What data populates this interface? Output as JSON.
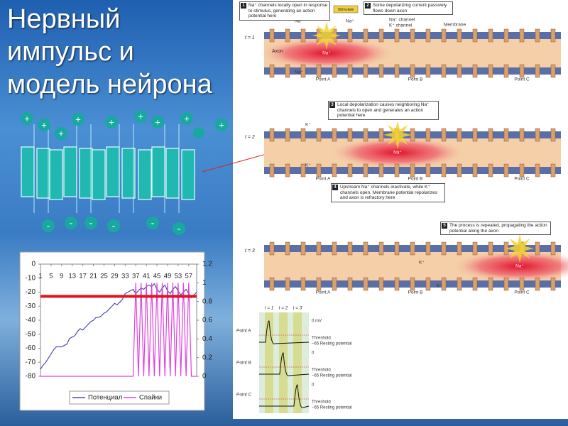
{
  "title_lines": [
    "Нервный",
    "импульс и",
    "модель нейрона"
  ],
  "ion_diagram": {
    "plus": "+",
    "minus": "-"
  },
  "chart_data": {
    "type": "line",
    "x": [
      1,
      2,
      3,
      4,
      5,
      6,
      7,
      8,
      9,
      10,
      11,
      12,
      13,
      14,
      15,
      16,
      17,
      18,
      19,
      20,
      21,
      22,
      23,
      24,
      25,
      26,
      27,
      28,
      29,
      30,
      31,
      32,
      33,
      34,
      35,
      36,
      37,
      38,
      39,
      40,
      41,
      42,
      43,
      44,
      45,
      46,
      47,
      48,
      49,
      50,
      51,
      52,
      53,
      54,
      55,
      56,
      57,
      58,
      59,
      60
    ],
    "xlim": [
      1,
      60
    ],
    "xticks": [
      1,
      5,
      9,
      13,
      17,
      21,
      25,
      29,
      33,
      37,
      41,
      45,
      49,
      53,
      57
    ],
    "ylim": [
      -80,
      0
    ],
    "yticks": [
      0,
      -10,
      -20,
      -30,
      -40,
      -50,
      -60,
      -70,
      -80
    ],
    "y2lim": [
      0,
      1.2
    ],
    "y2ticks": [
      {
        "value": 1.2,
        "label": "1.2"
      },
      1,
      0.8,
      0.6,
      0.4,
      0.2,
      0
    ],
    "reference_line": {
      "value": -23,
      "color": "#e0141c"
    },
    "series": [
      {
        "name": "Потенциал",
        "color": "#4a4fa8",
        "values": [
          -75,
          -72,
          -70,
          -67,
          -64,
          -61,
          -59,
          -59,
          -59,
          -58,
          -57,
          -53,
          -52,
          -51,
          -48,
          -46,
          -47,
          -45,
          -43,
          -41,
          -40,
          -38,
          -38,
          -37,
          -35,
          -34,
          -32,
          -30,
          -28,
          -29,
          -27,
          -25,
          -21,
          -20,
          -19,
          -18,
          -21,
          -19,
          -17,
          -18,
          -16,
          -15,
          -16,
          -14,
          -18,
          -20,
          -17,
          -15,
          -19,
          -21,
          -18,
          -16,
          -19,
          -22,
          -20,
          -18,
          -21,
          -24,
          -22,
          -20
        ]
      },
      {
        "name": "Спайки",
        "color": "#e040e0",
        "axis": "y2",
        "values": [
          0,
          0,
          0,
          0,
          0,
          0,
          0,
          0,
          0,
          0,
          0,
          0,
          0,
          0,
          0,
          0,
          0,
          0,
          0,
          0,
          0,
          0,
          0,
          0,
          0,
          0,
          0,
          0,
          0,
          0,
          0,
          0,
          0,
          0,
          0,
          0,
          1,
          0,
          1,
          0,
          1,
          0,
          1,
          0,
          1,
          0,
          1,
          0,
          1,
          0,
          1,
          0,
          1,
          0,
          1,
          0,
          1,
          0,
          0,
          0
        ]
      }
    ]
  },
  "figure": {
    "steps": [
      {
        "number": "1",
        "text": "Na⁺ channels locally open in response to stimulus, generating an action potential here"
      },
      {
        "number": "2",
        "text": "Some depolarizing current passively flows down axon"
      },
      {
        "number": "3",
        "text": "Local depolarization causes neighboring Na⁺ channels to open and generates an action potential here"
      },
      {
        "number": "4",
        "text": "Upstream Na⁺ channels inactivate, while K⁺ channels open. Membrane potential repolarizes and axon is refractory here"
      },
      {
        "number": "5",
        "text": "The process is repeated, propagating the action potential along the axon"
      }
    ],
    "stimulate": "Stimulate",
    "panels": [
      {
        "time": "t = 1"
      },
      {
        "time": "t = 2"
      },
      {
        "time": "t = 3"
      }
    ],
    "labels": {
      "axon": "Axon",
      "membrane": "Membrane",
      "na_channel": "Na⁺ channel",
      "k_channel": "K⁺ channel",
      "na": "Na⁺",
      "k": "K⁺",
      "point_a": "Point A",
      "point_b": "Point B",
      "point_c": "Point C"
    },
    "traces": {
      "times": [
        "t = 1",
        "t = 2",
        "t = 3"
      ],
      "rows": [
        {
          "point": "Point A",
          "top": "0 mV",
          "threshold": "Threshold",
          "resting": "−65 Resting potential"
        },
        {
          "point": "Point B",
          "top": "0",
          "threshold": "Threshold",
          "resting": "−65 Resting potential"
        },
        {
          "point": "Point C",
          "top": "0",
          "threshold": "Threshold",
          "resting": "−65 Resting potential"
        }
      ]
    }
  }
}
